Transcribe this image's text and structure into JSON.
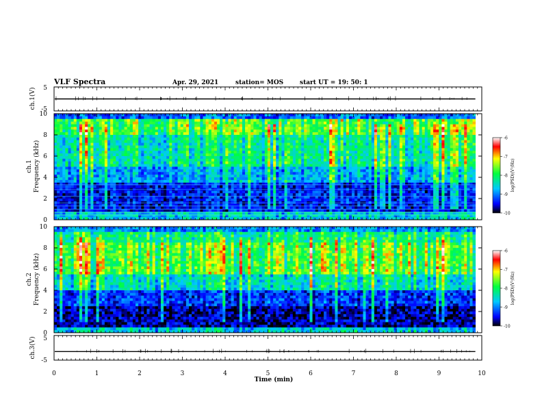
{
  "header": {
    "title": "VLF Spectra",
    "date": "Apr. 29, 2021",
    "station": "station= MOS",
    "start": "start  UT =   19: 50: 1"
  },
  "chart_data": [
    {
      "type": "line",
      "name": "ch.1 waveform",
      "ylabel": "ch.1(V)",
      "ylim": [
        -5,
        5
      ],
      "yticks": [
        "5",
        "-5"
      ],
      "trace_level": 0
    },
    {
      "type": "heatmap",
      "name": "ch.1 spectrogram",
      "ylabel": "ch.1 Frequency (kHz)",
      "ylim": [
        0,
        10
      ],
      "yticks": [
        "0",
        "2",
        "4",
        "6",
        "8",
        "10"
      ],
      "colorbar": {
        "label": "log(PSD)(V²/Hz)",
        "range": [
          -10,
          -6
        ],
        "ticks": [
          "-6",
          "-7",
          "-8",
          "-9",
          "-10"
        ]
      }
    },
    {
      "type": "heatmap",
      "name": "ch.2 spectrogram",
      "ylabel": "ch.2 Frequency (kHz)",
      "ylim": [
        0,
        10
      ],
      "yticks": [
        "0",
        "2",
        "4",
        "6",
        "8",
        "10"
      ],
      "colorbar": {
        "label": "log(PSD)(V²/Hz)",
        "range": [
          -10,
          -6
        ],
        "ticks": [
          "-6",
          "-7",
          "-8",
          "-9",
          "-10"
        ]
      }
    },
    {
      "type": "line",
      "name": "ch.3 waveform",
      "ylabel": "ch.3(V)",
      "ylim": [
        -5,
        5
      ],
      "yticks": [
        "5",
        "-5"
      ],
      "trace_level": -1.5
    }
  ],
  "x_axis": {
    "label": "Time  (min)",
    "xlim": [
      0,
      10
    ],
    "data_end": 9.85,
    "ticks": [
      "0",
      "1",
      "2",
      "3",
      "4",
      "5",
      "6",
      "7",
      "8",
      "9",
      "10"
    ]
  }
}
